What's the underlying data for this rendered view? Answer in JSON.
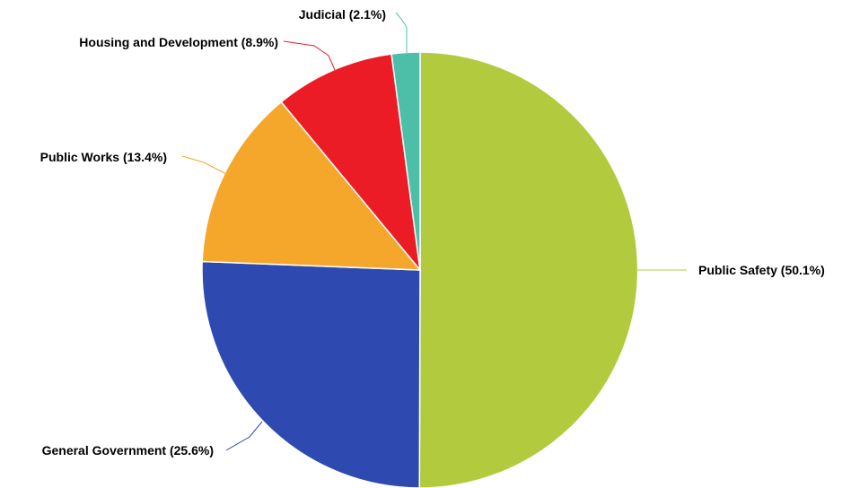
{
  "chart_data": {
    "type": "pie",
    "start_angle_deg": 0,
    "direction": "clockwise",
    "slices": [
      {
        "label": "Public Safety (50.1%)",
        "value": 50.1,
        "color": "#b2cb3e"
      },
      {
        "label": "General Government (25.6%)",
        "value": 25.6,
        "color": "#2e4ab0"
      },
      {
        "label": "Public Works (13.4%)",
        "value": 13.4,
        "color": "#f5a72c"
      },
      {
        "label": "Housing and Development (8.9%)",
        "value": 8.9,
        "color": "#ec1c27"
      },
      {
        "label": "Judicial (2.1%)",
        "value": 2.1,
        "color": "#4dbfa8"
      }
    ]
  }
}
